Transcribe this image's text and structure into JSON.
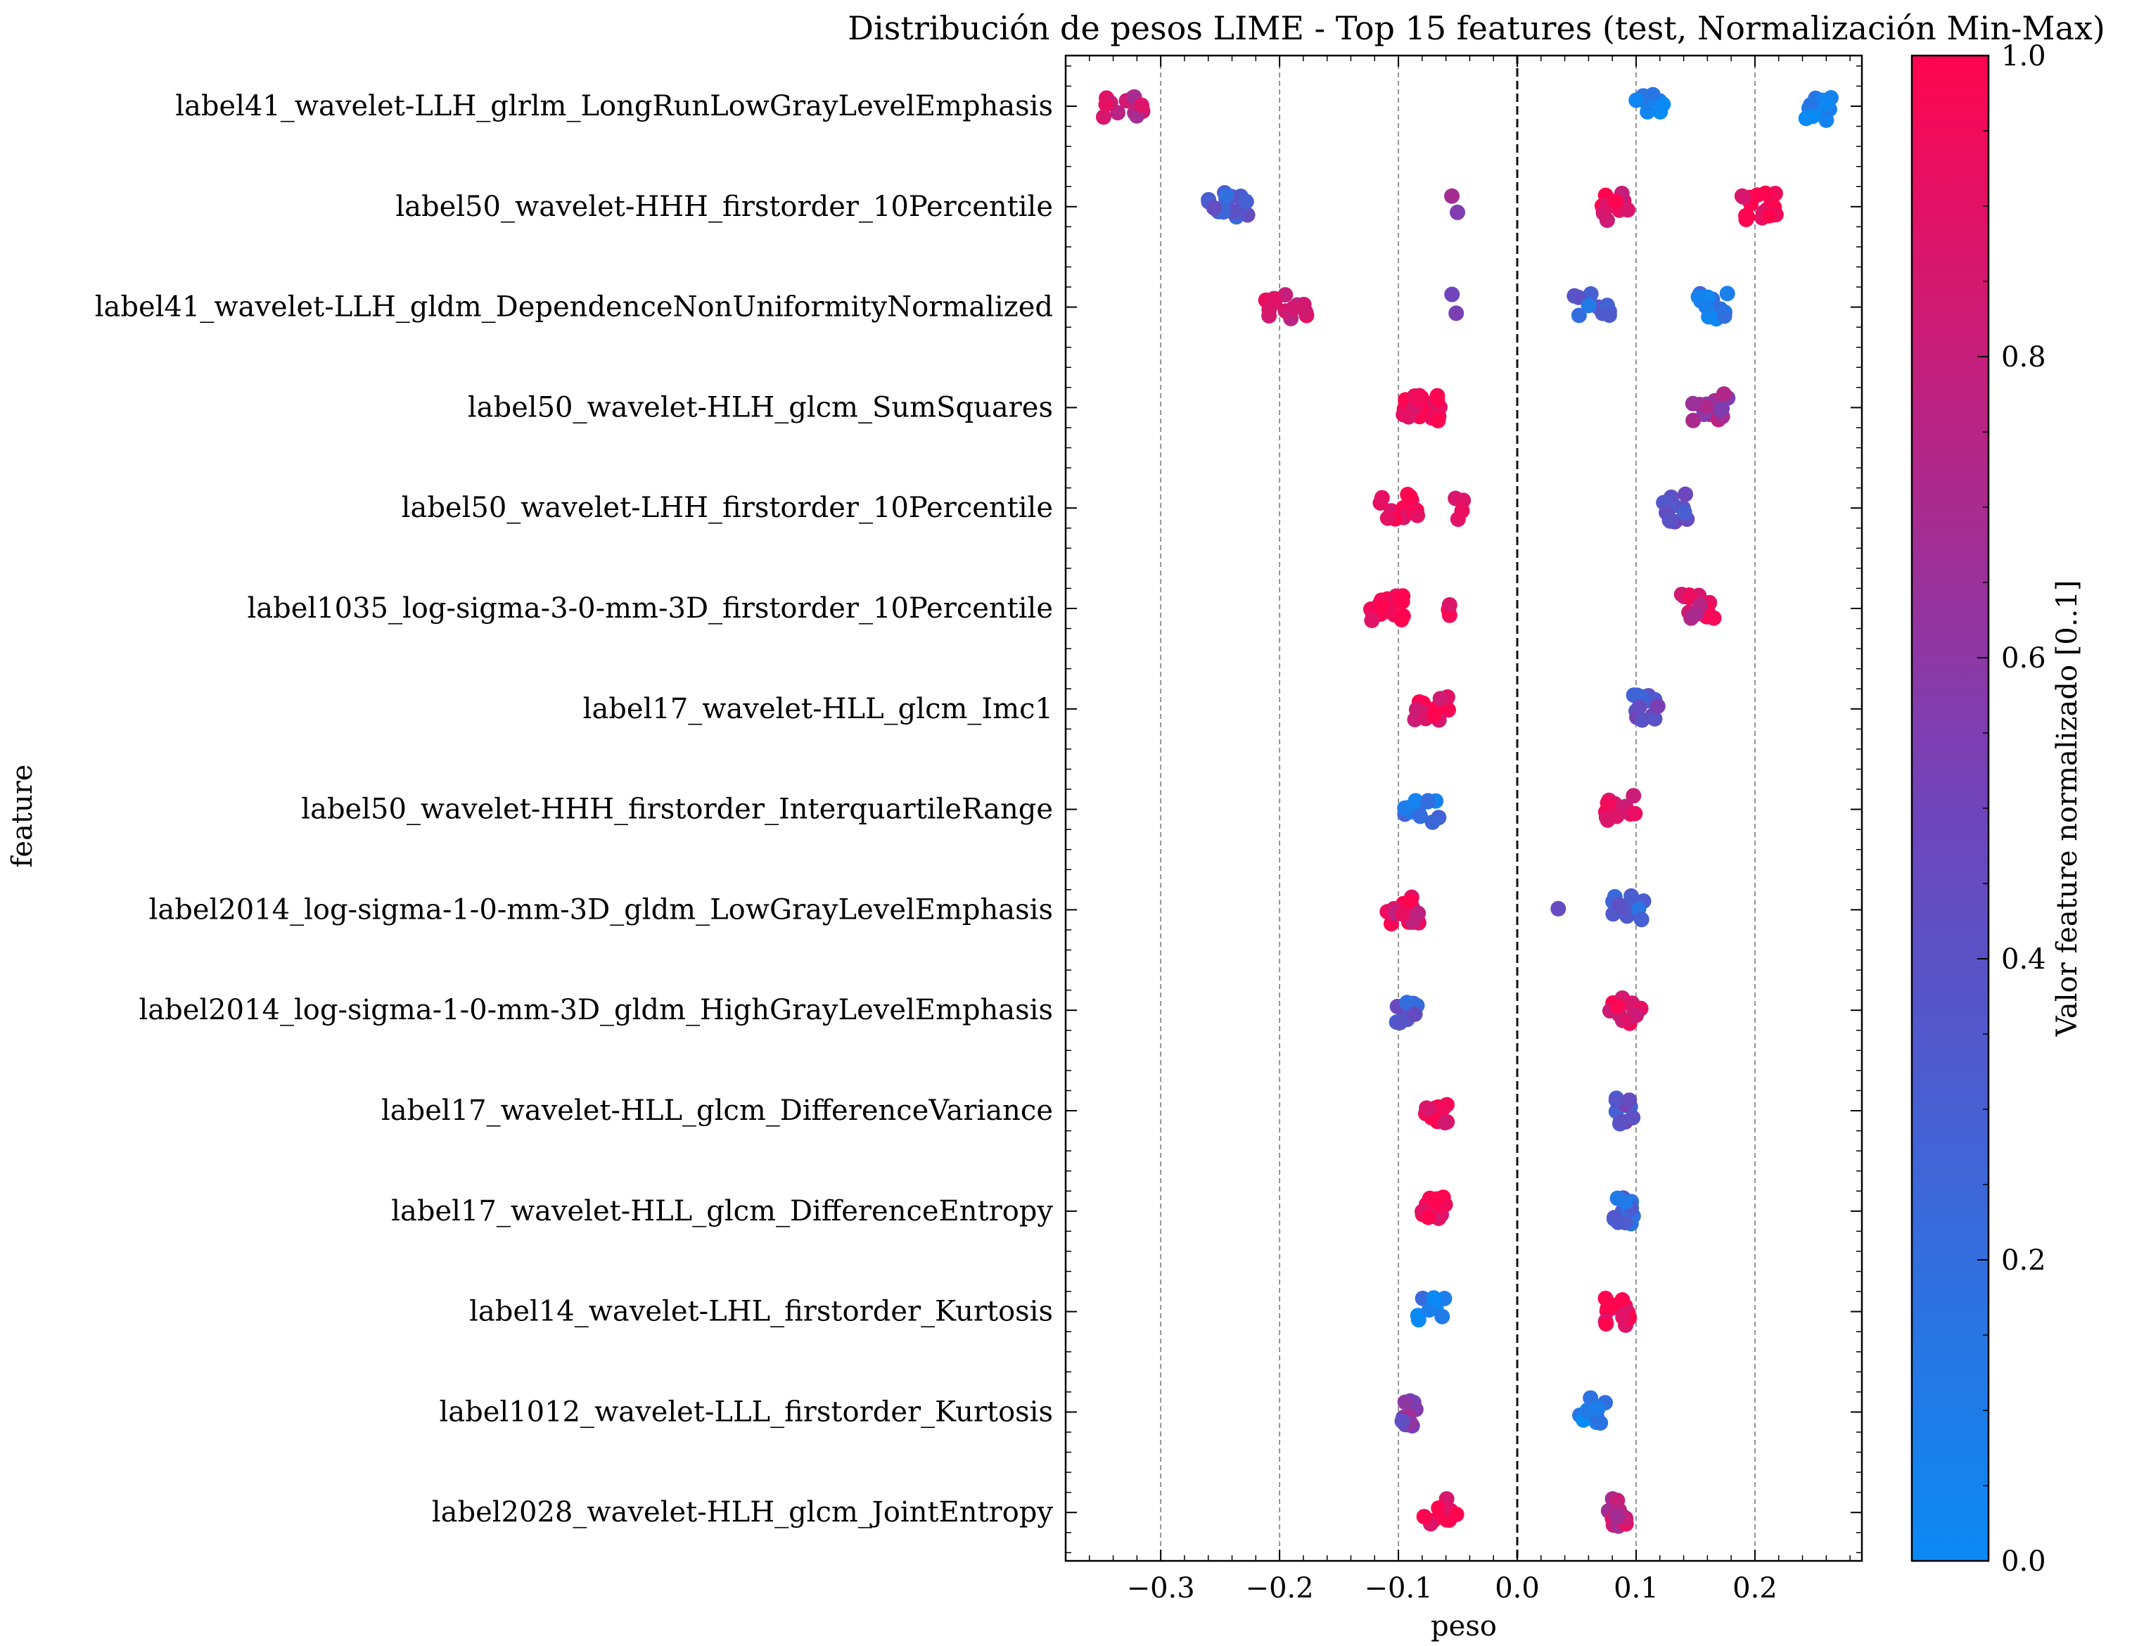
{
  "chart_data": {
    "type": "scatter",
    "title": "Distribución de pesos LIME - Top 15 features (test, Normalización Min-Max)",
    "xlabel": "peso",
    "ylabel": "feature",
    "xlim": [
      -0.38,
      0.29
    ],
    "xticks": [
      -0.3,
      -0.2,
      -0.1,
      0.0,
      0.1,
      0.2
    ],
    "xtick_labels": [
      "−0.3",
      "−0.2",
      "−0.1",
      "0.0",
      "0.1",
      "0.2"
    ],
    "grid": "vertical dashed",
    "zero_line": "dashed",
    "colorbar": {
      "label": "Valor feature normalizado [0..1]",
      "range": [
        0.0,
        1.0
      ],
      "ticks": [
        "0.0",
        "0.2",
        "0.4",
        "0.6",
        "0.8",
        "1.0"
      ],
      "color_low": "#0a8af5",
      "color_mid": "#7044bb",
      "color_high": "#ff0550"
    },
    "features": [
      {
        "name": "label41_wavelet-LLH_glrlm_LongRunLowGrayLevelEmphasis",
        "clusters": [
          {
            "x": -0.335,
            "spread": 0.02,
            "n": 14,
            "c": 0.8
          },
          {
            "x": 0.112,
            "spread": 0.012,
            "n": 8,
            "c": 0.1
          },
          {
            "x": 0.253,
            "spread": 0.012,
            "n": 16,
            "c": 0.05
          }
        ]
      },
      {
        "name": "label50_wavelet-HHH_firstorder_10Percentile",
        "clusters": [
          {
            "x": -0.24,
            "spread": 0.02,
            "n": 16,
            "c": 0.3
          },
          {
            "x": -0.052,
            "spread": 0.004,
            "n": 2,
            "c": 0.6
          },
          {
            "x": 0.08,
            "spread": 0.015,
            "n": 14,
            "c": 0.9
          },
          {
            "x": 0.2,
            "spread": 0.018,
            "n": 18,
            "c": 0.98
          }
        ]
      },
      {
        "name": "label41_wavelet-LLH_gldm_DependenceNonUniformityNormalized",
        "clusters": [
          {
            "x": -0.195,
            "spread": 0.018,
            "n": 14,
            "c": 0.85
          },
          {
            "x": -0.053,
            "spread": 0.004,
            "n": 2,
            "c": 0.6
          },
          {
            "x": 0.063,
            "spread": 0.015,
            "n": 12,
            "c": 0.25
          },
          {
            "x": 0.168,
            "spread": 0.016,
            "n": 14,
            "c": 0.15
          }
        ]
      },
      {
        "name": "label50_wavelet-HLH_glcm_SumSquares",
        "clusters": [
          {
            "x": -0.08,
            "spread": 0.016,
            "n": 24,
            "c": 0.97
          },
          {
            "x": 0.163,
            "spread": 0.016,
            "n": 14,
            "c": 0.7
          }
        ]
      },
      {
        "name": "label50_wavelet-LHH_firstorder_10Percentile",
        "clusters": [
          {
            "x": -0.1,
            "spread": 0.016,
            "n": 18,
            "c": 0.97
          },
          {
            "x": -0.048,
            "spread": 0.006,
            "n": 4,
            "c": 0.95
          },
          {
            "x": 0.133,
            "spread": 0.01,
            "n": 12,
            "c": 0.35
          }
        ]
      },
      {
        "name": "label1035_log-sigma-3-0-mm-3D_firstorder_10Percentile",
        "clusters": [
          {
            "x": -0.11,
            "spread": 0.016,
            "n": 18,
            "c": 0.97
          },
          {
            "x": -0.06,
            "spread": 0.004,
            "n": 3,
            "c": 0.95
          },
          {
            "x": 0.153,
            "spread": 0.015,
            "n": 16,
            "c": 0.85
          }
        ]
      },
      {
        "name": "label17_wavelet-HLL_glcm_Imc1",
        "clusters": [
          {
            "x": -0.072,
            "spread": 0.016,
            "n": 18,
            "c": 0.97
          },
          {
            "x": 0.11,
            "spread": 0.012,
            "n": 14,
            "c": 0.4
          }
        ]
      },
      {
        "name": "label50_wavelet-HHH_firstorder_InterquartileRange",
        "clusters": [
          {
            "x": -0.08,
            "spread": 0.016,
            "n": 14,
            "c": 0.15
          },
          {
            "x": 0.088,
            "spread": 0.014,
            "n": 14,
            "c": 0.95
          }
        ]
      },
      {
        "name": "label2014_log-sigma-1-0-mm-3D_gldm_LowGrayLevelEmphasis",
        "clusters": [
          {
            "x": -0.098,
            "spread": 0.016,
            "n": 16,
            "c": 0.9
          },
          {
            "x": 0.035,
            "spread": 0.002,
            "n": 1,
            "c": 0.45
          },
          {
            "x": 0.093,
            "spread": 0.014,
            "n": 12,
            "c": 0.3
          }
        ]
      },
      {
        "name": "label2014_log-sigma-1-0-mm-3D_gldm_HighGrayLevelEmphasis",
        "clusters": [
          {
            "x": -0.093,
            "spread": 0.01,
            "n": 14,
            "c": 0.35
          },
          {
            "x": 0.092,
            "spread": 0.014,
            "n": 16,
            "c": 0.95
          }
        ]
      },
      {
        "name": "label17_wavelet-HLL_glcm_DifferenceVariance",
        "clusters": [
          {
            "x": -0.068,
            "spread": 0.01,
            "n": 16,
            "c": 0.97
          },
          {
            "x": 0.09,
            "spread": 0.008,
            "n": 12,
            "c": 0.4
          }
        ]
      },
      {
        "name": "label17_wavelet-HLL_glcm_DifferenceEntropy",
        "clusters": [
          {
            "x": -0.07,
            "spread": 0.01,
            "n": 16,
            "c": 0.97
          },
          {
            "x": 0.09,
            "spread": 0.009,
            "n": 14,
            "c": 0.25
          }
        ]
      },
      {
        "name": "label14_wavelet-LHL_firstorder_Kurtosis",
        "clusters": [
          {
            "x": -0.072,
            "spread": 0.012,
            "n": 8,
            "c": 0.1
          },
          {
            "x": 0.083,
            "spread": 0.012,
            "n": 14,
            "c": 0.95
          }
        ]
      },
      {
        "name": "label1012_wavelet-LLL_firstorder_Kurtosis",
        "clusters": [
          {
            "x": -0.088,
            "spread": 0.01,
            "n": 14,
            "c": 0.55
          },
          {
            "x": 0.062,
            "spread": 0.012,
            "n": 10,
            "c": 0.1
          }
        ]
      },
      {
        "name": "label2028_wavelet-HLH_glcm_JointEntropy",
        "clusters": [
          {
            "x": -0.065,
            "spread": 0.014,
            "n": 10,
            "c": 0.97
          },
          {
            "x": 0.085,
            "spread": 0.01,
            "n": 14,
            "c": 0.75
          }
        ]
      }
    ]
  }
}
